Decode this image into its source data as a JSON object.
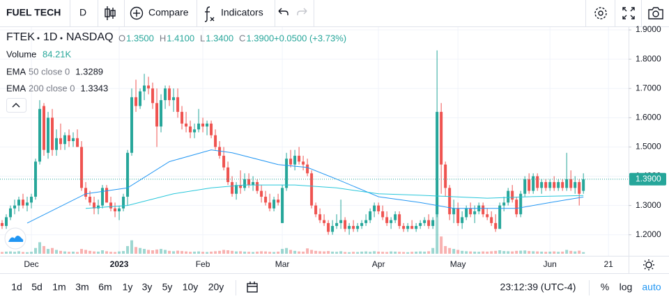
{
  "ui": {
    "brand": "FUEL TECH",
    "interval": "D",
    "compare": "Compare",
    "indicators": "Indicators",
    "ranges": [
      "1d",
      "5d",
      "1m",
      "3m",
      "6m",
      "1y",
      "3y",
      "5y",
      "10y",
      "20y"
    ],
    "clock": "23:12:39 (UTC-4)",
    "percent": "%",
    "log": "log",
    "auto": "auto"
  },
  "chart_data": {
    "type": "candlestick",
    "symbol": "FTEK",
    "period": "1D",
    "exchange": "NASDAQ",
    "legend_ohlc": [
      {
        "key": "O",
        "value": "1.3500"
      },
      {
        "key": "H",
        "value": "1.4100"
      },
      {
        "key": "L",
        "value": "1.3400"
      },
      {
        "key": "C",
        "value": "1.3900"
      }
    ],
    "change": "+0.0500 (+3.73%)",
    "up_color": "#26a69a",
    "down_color": "#ef5350",
    "ohlc": [
      [
        1.24,
        1.25,
        1.22,
        1.23
      ],
      [
        1.23,
        1.27,
        1.22,
        1.26
      ],
      [
        1.26,
        1.3,
        1.25,
        1.29
      ],
      [
        1.29,
        1.32,
        1.27,
        1.3
      ],
      [
        1.3,
        1.33,
        1.28,
        1.32
      ],
      [
        1.32,
        1.34,
        1.29,
        1.3
      ],
      [
        1.3,
        1.33,
        1.28,
        1.31
      ],
      [
        1.31,
        1.34,
        1.29,
        1.33
      ],
      [
        1.33,
        1.46,
        1.32,
        1.45
      ],
      [
        1.45,
        1.66,
        1.44,
        1.63
      ],
      [
        1.64,
        1.65,
        1.47,
        1.49
      ],
      [
        1.48,
        1.62,
        1.46,
        1.6
      ],
      [
        1.6,
        1.63,
        1.47,
        1.49
      ],
      [
        1.49,
        1.56,
        1.47,
        1.53
      ],
      [
        1.53,
        1.58,
        1.49,
        1.51
      ],
      [
        1.51,
        1.55,
        1.49,
        1.54
      ],
      [
        1.54,
        1.56,
        1.5,
        1.52
      ],
      [
        1.52,
        1.55,
        1.5,
        1.53
      ],
      [
        1.53,
        1.56,
        1.5,
        1.5
      ],
      [
        1.5,
        1.52,
        1.35,
        1.36
      ],
      [
        1.36,
        1.38,
        1.32,
        1.33
      ],
      [
        1.33,
        1.35,
        1.3,
        1.31
      ],
      [
        1.31,
        1.33,
        1.27,
        1.29
      ],
      [
        1.29,
        1.32,
        1.27,
        1.3
      ],
      [
        1.3,
        1.37,
        1.29,
        1.36
      ],
      [
        1.36,
        1.37,
        1.31,
        1.31
      ],
      [
        1.31,
        1.33,
        1.28,
        1.29
      ],
      [
        1.29,
        1.31,
        1.26,
        1.28
      ],
      [
        1.28,
        1.3,
        1.25,
        1.29
      ],
      [
        1.29,
        1.34,
        1.28,
        1.33
      ],
      [
        1.33,
        1.49,
        1.3,
        1.48
      ],
      [
        1.48,
        1.7,
        1.47,
        1.67
      ],
      [
        1.67,
        1.73,
        1.62,
        1.64
      ],
      [
        1.64,
        1.7,
        1.63,
        1.69
      ],
      [
        1.69,
        1.75,
        1.66,
        1.71
      ],
      [
        1.71,
        1.74,
        1.68,
        1.7
      ],
      [
        1.7,
        1.72,
        1.63,
        1.65
      ],
      [
        1.65,
        1.7,
        1.5,
        1.57
      ],
      [
        1.57,
        1.68,
        1.55,
        1.66
      ],
      [
        1.66,
        1.71,
        1.63,
        1.7
      ],
      [
        1.7,
        1.71,
        1.64,
        1.66
      ],
      [
        1.66,
        1.7,
        1.62,
        1.67
      ],
      [
        1.67,
        1.7,
        1.6,
        1.62
      ],
      [
        1.62,
        1.64,
        1.56,
        1.58
      ],
      [
        1.58,
        1.62,
        1.55,
        1.57
      ],
      [
        1.57,
        1.59,
        1.53,
        1.55
      ],
      [
        1.55,
        1.58,
        1.53,
        1.56
      ],
      [
        1.56,
        1.63,
        1.55,
        1.58
      ],
      [
        1.58,
        1.6,
        1.55,
        1.57
      ],
      [
        1.57,
        1.59,
        1.54,
        1.58
      ],
      [
        1.58,
        1.59,
        1.53,
        1.54
      ],
      [
        1.54,
        1.56,
        1.49,
        1.5
      ],
      [
        1.5,
        1.52,
        1.46,
        1.47
      ],
      [
        1.47,
        1.5,
        1.42,
        1.43
      ],
      [
        1.43,
        1.45,
        1.37,
        1.38
      ],
      [
        1.38,
        1.4,
        1.33,
        1.34
      ],
      [
        1.34,
        1.38,
        1.32,
        1.37
      ],
      [
        1.37,
        1.42,
        1.34,
        1.36
      ],
      [
        1.36,
        1.41,
        1.35,
        1.39
      ],
      [
        1.39,
        1.41,
        1.36,
        1.37
      ],
      [
        1.37,
        1.4,
        1.35,
        1.38
      ],
      [
        1.38,
        1.39,
        1.34,
        1.35
      ],
      [
        1.35,
        1.37,
        1.31,
        1.33
      ],
      [
        1.33,
        1.35,
        1.3,
        1.31
      ],
      [
        1.31,
        1.34,
        1.28,
        1.29
      ],
      [
        1.29,
        1.33,
        1.28,
        1.32
      ],
      [
        1.32,
        1.34,
        1.3,
        1.31
      ],
      [
        1.24,
        1.37,
        1.24,
        1.36
      ],
      [
        1.36,
        1.48,
        1.35,
        1.46
      ],
      [
        1.46,
        1.49,
        1.43,
        1.44
      ],
      [
        1.44,
        1.49,
        1.42,
        1.47
      ],
      [
        1.47,
        1.5,
        1.44,
        1.45
      ],
      [
        1.45,
        1.47,
        1.42,
        1.44
      ],
      [
        1.44,
        1.46,
        1.4,
        1.41
      ],
      [
        1.41,
        1.42,
        1.29,
        1.3
      ],
      [
        1.3,
        1.31,
        1.26,
        1.27
      ],
      [
        1.27,
        1.29,
        1.24,
        1.25
      ],
      [
        1.25,
        1.27,
        1.23,
        1.24
      ],
      [
        1.24,
        1.25,
        1.2,
        1.21
      ],
      [
        1.21,
        1.25,
        1.2,
        1.23
      ],
      [
        1.23,
        1.27,
        1.22,
        1.24
      ],
      [
        1.24,
        1.32,
        1.22,
        1.25
      ],
      [
        1.25,
        1.26,
        1.21,
        1.22
      ],
      [
        1.22,
        1.24,
        1.2,
        1.23
      ],
      [
        1.23,
        1.25,
        1.21,
        1.22
      ],
      [
        1.22,
        1.24,
        1.21,
        1.23
      ],
      [
        1.23,
        1.25,
        1.22,
        1.24
      ],
      [
        1.24,
        1.27,
        1.23,
        1.25
      ],
      [
        1.25,
        1.29,
        1.24,
        1.28
      ],
      [
        1.28,
        1.31,
        1.26,
        1.3
      ],
      [
        1.3,
        1.31,
        1.27,
        1.28
      ],
      [
        1.28,
        1.3,
        1.25,
        1.26
      ],
      [
        1.26,
        1.28,
        1.23,
        1.24
      ],
      [
        1.24,
        1.26,
        1.22,
        1.25
      ],
      [
        1.25,
        1.28,
        1.24,
        1.27
      ],
      [
        1.27,
        1.28,
        1.22,
        1.23
      ],
      [
        1.23,
        1.24,
        1.21,
        1.22
      ],
      [
        1.22,
        1.24,
        1.21,
        1.23
      ],
      [
        1.23,
        1.25,
        1.22,
        1.22
      ],
      [
        1.22,
        1.24,
        1.21,
        1.23
      ],
      [
        1.23,
        1.25,
        1.22,
        1.24
      ],
      [
        1.24,
        1.26,
        1.23,
        1.25
      ],
      [
        1.25,
        1.27,
        1.22,
        1.23
      ],
      [
        1.23,
        1.26,
        1.22,
        1.25
      ],
      [
        1.27,
        1.83,
        1.26,
        1.62
      ],
      [
        1.62,
        1.65,
        1.34,
        1.44
      ],
      [
        1.44,
        1.45,
        1.33,
        1.36
      ],
      [
        1.36,
        1.37,
        1.25,
        1.27
      ],
      [
        1.27,
        1.32,
        1.24,
        1.29
      ],
      [
        1.29,
        1.31,
        1.23,
        1.24
      ],
      [
        1.24,
        1.28,
        1.22,
        1.26
      ],
      [
        1.26,
        1.3,
        1.25,
        1.29
      ],
      [
        1.29,
        1.31,
        1.26,
        1.27
      ],
      [
        1.27,
        1.3,
        1.24,
        1.28
      ],
      [
        1.28,
        1.31,
        1.27,
        1.3
      ],
      [
        1.3,
        1.31,
        1.26,
        1.27
      ],
      [
        1.27,
        1.29,
        1.25,
        1.26
      ],
      [
        1.26,
        1.28,
        1.23,
        1.24
      ],
      [
        1.24,
        1.27,
        1.21,
        1.22
      ],
      [
        1.22,
        1.31,
        1.22,
        1.3
      ],
      [
        1.3,
        1.33,
        1.28,
        1.31
      ],
      [
        1.31,
        1.36,
        1.3,
        1.35
      ],
      [
        1.35,
        1.37,
        1.31,
        1.32
      ],
      [
        1.32,
        1.33,
        1.26,
        1.27
      ],
      [
        1.27,
        1.35,
        1.26,
        1.34
      ],
      [
        1.34,
        1.4,
        1.33,
        1.39
      ],
      [
        1.39,
        1.41,
        1.34,
        1.35
      ],
      [
        1.35,
        1.41,
        1.34,
        1.4
      ],
      [
        1.4,
        1.41,
        1.35,
        1.36
      ],
      [
        1.36,
        1.39,
        1.34,
        1.38
      ],
      [
        1.38,
        1.39,
        1.35,
        1.36
      ],
      [
        1.36,
        1.39,
        1.35,
        1.38
      ],
      [
        1.38,
        1.4,
        1.35,
        1.36
      ],
      [
        1.36,
        1.39,
        1.35,
        1.38
      ],
      [
        1.38,
        1.39,
        1.35,
        1.36
      ],
      [
        1.36,
        1.48,
        1.35,
        1.39
      ],
      [
        1.39,
        1.42,
        1.35,
        1.36
      ],
      [
        1.36,
        1.4,
        1.34,
        1.38
      ],
      [
        1.38,
        1.39,
        1.3,
        1.34
      ],
      [
        1.35,
        1.41,
        1.34,
        1.39
      ]
    ],
    "volume": {
      "name": "Volume",
      "value_label": "84.21K",
      "values": [
        90,
        110,
        120,
        100,
        130,
        90,
        80,
        100,
        300,
        600,
        400,
        250,
        300,
        200,
        150,
        120,
        100,
        110,
        90,
        250,
        200,
        150,
        120,
        110,
        180,
        130,
        100,
        90,
        120,
        140,
        400,
        700,
        350,
        300,
        250,
        200,
        180,
        220,
        250,
        200,
        150,
        130,
        160,
        140,
        120,
        100,
        110,
        120,
        100,
        90,
        110,
        130,
        150,
        200,
        180,
        150,
        120,
        130,
        110,
        100,
        90,
        110,
        130,
        120,
        100,
        90,
        110,
        250,
        300,
        200,
        150,
        120,
        110,
        280,
        200,
        150,
        130,
        120,
        140,
        110,
        100,
        130,
        90,
        80,
        100,
        90,
        110,
        120,
        100,
        130,
        110,
        100,
        90,
        120,
        110,
        100,
        90,
        80,
        100,
        110,
        120,
        110,
        130,
        300,
        2900,
        900,
        400,
        300,
        250,
        200,
        150,
        130,
        120,
        110,
        100,
        120,
        110,
        130,
        150,
        180,
        140,
        130,
        120,
        150,
        160,
        170,
        140,
        130,
        120,
        110,
        100,
        110,
        120,
        100,
        110,
        200,
        150,
        120,
        160,
        84.21
      ]
    },
    "lines": [
      {
        "name": "EMA",
        "params": "50 close 0",
        "color": "#2196f3",
        "x": [
          6,
          20,
          30,
          40,
          50,
          55,
          66,
          73,
          80,
          90,
          100,
          108,
          116,
          123,
          131,
          139
        ],
        "values": [
          1.24,
          1.34,
          1.36,
          1.45,
          1.49,
          1.48,
          1.44,
          1.43,
          1.39,
          1.33,
          1.31,
          1.29,
          1.29,
          1.29,
          1.31,
          1.3289
        ]
      },
      {
        "name": "EMA",
        "params": "200 close 0",
        "color": "#26c6da",
        "x": [
          20,
          30,
          41,
          50,
          58,
          70,
          80,
          90,
          100,
          108,
          116,
          126,
          139
        ],
        "values": [
          1.29,
          1.3,
          1.34,
          1.36,
          1.37,
          1.37,
          1.36,
          1.34,
          1.335,
          1.33,
          1.325,
          1.33,
          1.3343
        ]
      }
    ],
    "last_price": {
      "value": 1.39,
      "label": "1.3900"
    },
    "xlim": [
      -0.5,
      149.8
    ],
    "xticks": [
      {
        "value": 7,
        "label": "Dec"
      },
      {
        "value": 28,
        "label": "2023",
        "bold": true
      },
      {
        "value": 48,
        "label": "Feb"
      },
      {
        "value": 67,
        "label": "Mar"
      },
      {
        "value": 90,
        "label": "Apr"
      },
      {
        "value": 109,
        "label": "May"
      },
      {
        "value": 131,
        "label": "Jun"
      },
      {
        "value": 145,
        "label": "21"
      }
    ],
    "ylim": [
      1.128,
      1.912
    ],
    "yticks": [
      {
        "value": 1.2,
        "label": "1.2000"
      },
      {
        "value": 1.3,
        "label": "1.3000"
      },
      {
        "value": 1.4,
        "label": "1.4000"
      },
      {
        "value": 1.5,
        "label": "1.5000"
      },
      {
        "value": 1.6,
        "label": "1.6000"
      },
      {
        "value": 1.7,
        "label": "1.7000"
      },
      {
        "value": 1.8,
        "label": "1.8000"
      },
      {
        "value": 1.9,
        "label": "1.9000"
      }
    ],
    "grid": true
  }
}
